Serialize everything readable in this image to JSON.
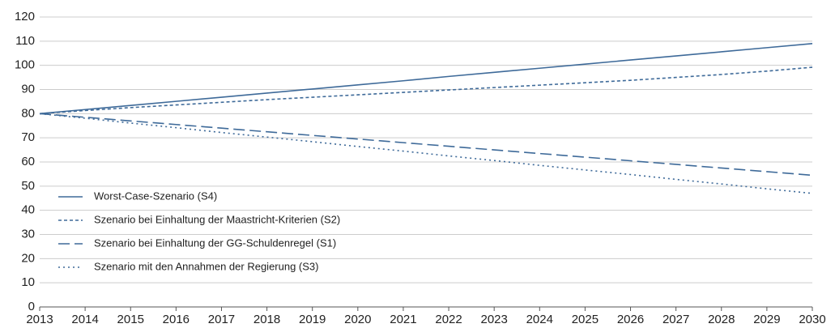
{
  "chart_data": {
    "type": "line",
    "x": [
      2013,
      2014,
      2015,
      2016,
      2017,
      2018,
      2019,
      2020,
      2021,
      2022,
      2023,
      2024,
      2025,
      2026,
      2027,
      2028,
      2029,
      2030
    ],
    "series": [
      {
        "name": "Worst-Case-Szenario (S4)",
        "color": "#3e6a99",
        "dash": "solid",
        "values": [
          80,
          81.7,
          83.4,
          85.1,
          86.8,
          88.5,
          90.2,
          91.9,
          93.6,
          95.4,
          97.1,
          98.8,
          100.5,
          102.2,
          103.9,
          105.6,
          107.3,
          109
        ]
      },
      {
        "name": "Szenario bei Einhaltung der Maastricht-Kriterien (S2)",
        "color": "#3e6a99",
        "dash": "short-dash",
        "values": [
          80,
          81.3,
          82.5,
          83.6,
          84.7,
          85.8,
          86.8,
          87.8,
          88.8,
          89.8,
          90.8,
          91.8,
          92.8,
          93.8,
          95.0,
          96.2,
          97.6,
          99.2
        ]
      },
      {
        "name": "Szenario bei Einhaltung der GG-Schuldenregel (S1)",
        "color": "#3e6a99",
        "dash": "long-dash",
        "values": [
          80,
          78.5,
          77,
          75.5,
          74,
          72.5,
          71,
          69.5,
          68,
          66.5,
          65,
          63.5,
          62,
          60.5,
          59,
          57.5,
          56,
          54.5
        ]
      },
      {
        "name": "Szenario mit den Annahmen der Regierung (S3)",
        "color": "#3e6a99",
        "dash": "dotted",
        "values": [
          80,
          78.1,
          76.1,
          74.2,
          72.2,
          70.3,
          68.4,
          66.4,
          64.5,
          62.5,
          60.6,
          58.6,
          56.7,
          54.8,
          52.8,
          50.9,
          48.9,
          47
        ]
      }
    ],
    "xlim": [
      2013,
      2030
    ],
    "xticks": [
      2013,
      2014,
      2015,
      2016,
      2017,
      2018,
      2019,
      2020,
      2021,
      2022,
      2023,
      2024,
      2025,
      2026,
      2027,
      2028,
      2029,
      2030
    ],
    "ylim": [
      0,
      120
    ],
    "yticks": [
      0,
      10,
      20,
      30,
      40,
      50,
      60,
      70,
      80,
      90,
      100,
      110,
      120
    ],
    "grid": true,
    "legend": "bottom-left"
  }
}
